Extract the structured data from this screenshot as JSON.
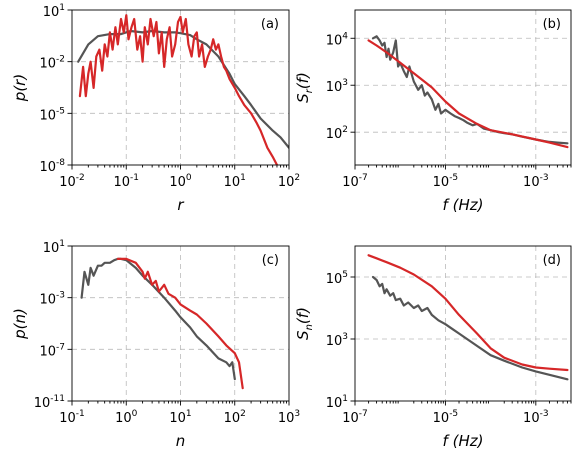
{
  "colors": {
    "gray": "#555555",
    "red": "#d62728"
  },
  "chart_data": [
    {
      "panel": "(a)",
      "type": "line",
      "xscale": "log",
      "yscale": "log",
      "xlim": [
        0.01,
        100
      ],
      "ylim": [
        1e-08,
        10
      ],
      "xlabel": "r",
      "ylabel": "p(r)",
      "xticks": [
        0.01,
        0.1,
        1,
        10,
        100
      ],
      "yticks": [
        1e-08,
        1e-05,
        0.01,
        10
      ],
      "xtick_labels": [
        [
          "10",
          "-2"
        ],
        [
          "10",
          "-1"
        ],
        [
          "10",
          "0"
        ],
        [
          "10",
          "1"
        ],
        [
          "10",
          "2"
        ]
      ],
      "ytick_labels": [
        [
          "10",
          "-8"
        ],
        [
          "10",
          "-5"
        ],
        [
          "10",
          "-2"
        ],
        [
          "10",
          "1"
        ]
      ],
      "grid": true,
      "legend": "none",
      "series": [
        {
          "color": "gray",
          "x": [
            0.013,
            0.02,
            0.03,
            0.05,
            0.08,
            0.12,
            0.2,
            0.3,
            0.5,
            0.8,
            1,
            1.5,
            2,
            3,
            5,
            8,
            10,
            15,
            20,
            30,
            50,
            70,
            100
          ],
          "y": [
            0.01,
            0.1,
            0.3,
            0.4,
            0.4,
            0.6,
            0.5,
            0.6,
            0.5,
            0.5,
            0.45,
            0.35,
            0.2,
            0.1,
            0.02,
            0.002,
            0.0005,
            0.0001,
            3e-05,
            5e-06,
            1e-06,
            4e-07,
            1e-07
          ]
        },
        {
          "color": "red",
          "x": [
            0.014,
            0.016,
            0.018,
            0.02,
            0.022,
            0.025,
            0.028,
            0.032,
            0.036,
            0.04,
            0.045,
            0.05,
            0.056,
            0.063,
            0.07,
            0.08,
            0.09,
            0.1,
            0.11,
            0.125,
            0.14,
            0.16,
            0.18,
            0.2,
            0.22,
            0.25,
            0.28,
            0.32,
            0.36,
            0.4,
            0.45,
            0.5,
            0.56,
            0.63,
            0.7,
            0.8,
            0.9,
            1,
            1.1,
            1.25,
            1.4,
            1.6,
            1.8,
            2,
            2.2,
            2.5,
            2.8,
            3.2,
            3.6,
            4,
            4.5,
            5,
            5.6,
            6.3,
            7,
            8,
            10,
            12,
            15,
            20,
            25,
            30,
            40,
            50,
            60
          ],
          "y": [
            0.0001,
            0.005,
            0.0001,
            0.002,
            0.01,
            0.0003,
            0.02,
            0.05,
            0.003,
            0.1,
            0.02,
            0.5,
            0.05,
            1,
            0.1,
            3,
            0.5,
            5,
            0.2,
            1,
            3,
            0.05,
            0.3,
            0.01,
            1,
            0.1,
            3,
            0.3,
            2,
            0.03,
            0.5,
            0.005,
            0.2,
            1,
            0.02,
            0.1,
            2,
            4,
            0.5,
            3,
            0.1,
            0.02,
            0.3,
            0.5,
            0.02,
            0.1,
            0.005,
            0.02,
            0.05,
            0.2,
            0.05,
            0.1,
            0.02,
            0.005,
            0.003,
            0.001,
            0.0003,
            0.0001,
            3e-05,
            1e-05,
            3e-06,
            1e-06,
            1e-07,
            3e-08,
            1e-08
          ]
        }
      ]
    },
    {
      "panel": "(b)",
      "type": "line",
      "xscale": "log",
      "yscale": "log",
      "xlim": [
        1e-07,
        0.006
      ],
      "ylim": [
        20,
        40000
      ],
      "xlabel": "f (Hz)",
      "ylabel": "S_r(f)",
      "xticks": [
        1e-07,
        1e-05,
        0.001
      ],
      "yticks": [
        100,
        1000,
        10000
      ],
      "xtick_labels": [
        [
          "10",
          "-7"
        ],
        [
          "10",
          "-5"
        ],
        [
          "10",
          "-3"
        ]
      ],
      "ytick_labels": [
        [
          "10",
          "2"
        ],
        [
          "10",
          "3"
        ],
        [
          "10",
          "4"
        ]
      ],
      "grid": true,
      "legend": "none",
      "series": [
        {
          "color": "gray",
          "x": [
            2.5e-07,
            3e-07,
            3.5e-07,
            4e-07,
            4.5e-07,
            5e-07,
            5.5e-07,
            6e-07,
            7e-07,
            8e-07,
            9e-07,
            1e-06,
            1.2e-06,
            1.4e-06,
            1.6e-06,
            2e-06,
            2.5e-06,
            3e-06,
            3.5e-06,
            4e-06,
            5e-06,
            6e-06,
            7e-06,
            8e-06,
            1e-05,
            1.3e-05,
            1.6e-05,
            2e-05,
            2.5e-05,
            3e-05,
            4e-05,
            5e-05,
            7e-05,
            0.0001,
            0.00015,
            0.0002,
            0.0003,
            0.0005,
            0.0007,
            0.001,
            0.0015,
            0.002,
            0.003,
            0.005
          ],
          "y": [
            10000,
            11000,
            9000,
            7000,
            8000,
            4000,
            6000,
            3500,
            5000,
            9000,
            2500,
            3000,
            2000,
            1500,
            2500,
            1200,
            800,
            1000,
            600,
            700,
            500,
            300,
            400,
            250,
            300,
            250,
            220,
            200,
            180,
            160,
            140,
            150,
            120,
            110,
            100,
            95,
            90,
            80,
            75,
            70,
            65,
            62,
            60,
            58
          ]
        },
        {
          "color": "red",
          "x": [
            2e-07,
            3e-07,
            5e-07,
            1e-06,
            2e-06,
            5e-06,
            1e-05,
            2e-05,
            5e-05,
            0.0001,
            0.0003,
            0.001,
            0.002,
            0.005
          ],
          "y": [
            9000,
            7000,
            5000,
            3000,
            1800,
            900,
            450,
            250,
            150,
            110,
            90,
            70,
            60,
            48
          ]
        }
      ]
    },
    {
      "panel": "(c)",
      "type": "line",
      "xscale": "log",
      "yscale": "log",
      "xlim": [
        0.1,
        1000
      ],
      "ylim": [
        1e-11,
        10
      ],
      "xlabel": "n",
      "ylabel": "p(n)",
      "xticks": [
        0.1,
        1,
        10,
        100,
        1000
      ],
      "yticks": [
        1e-11,
        1e-07,
        0.001,
        10
      ],
      "xtick_labels": [
        [
          "10",
          "-1"
        ],
        [
          "10",
          "0"
        ],
        [
          "10",
          "1"
        ],
        [
          "10",
          "2"
        ],
        [
          "10",
          "3"
        ]
      ],
      "ytick_labels": [
        [
          "10",
          "-11"
        ],
        [
          "10",
          "-7"
        ],
        [
          "10",
          "-3"
        ],
        [
          "10",
          "1"
        ]
      ],
      "grid": true,
      "legend": "none",
      "series": [
        {
          "color": "gray",
          "x": [
            0.15,
            0.17,
            0.2,
            0.22,
            0.25,
            0.3,
            0.35,
            0.4,
            0.5,
            0.6,
            0.7,
            0.8,
            1,
            1.5,
            2,
            3,
            5,
            8,
            10,
            15,
            20,
            30,
            50,
            70,
            80,
            90,
            100
          ],
          "y": [
            0.001,
            0.1,
            0.01,
            0.2,
            0.05,
            0.3,
            0.3,
            0.5,
            0.5,
            0.8,
            1,
            1,
            0.8,
            0.2,
            0.05,
            0.01,
            0.001,
            0.0001,
            3e-05,
            5e-06,
            1e-06,
            2e-07,
            2e-08,
            1e-08,
            5e-09,
            1e-08,
            5e-10
          ]
        },
        {
          "color": "red",
          "x": [
            0.7,
            1,
            1.5,
            2,
            2.2,
            2.5,
            3,
            3.5,
            4,
            5,
            6,
            8,
            10,
            15,
            20,
            30,
            50,
            70,
            100,
            120,
            140
          ],
          "y": [
            1,
            1,
            0.5,
            0.1,
            0.03,
            0.1,
            0.01,
            0.02,
            0.003,
            0.01,
            0.002,
            0.001,
            0.0003,
            0.0001,
            5e-05,
            1e-05,
            1e-06,
            2e-07,
            5e-08,
            1e-08,
            1e-10
          ]
        }
      ]
    },
    {
      "panel": "(d)",
      "type": "line",
      "xscale": "log",
      "yscale": "log",
      "xlim": [
        1e-07,
        0.006
      ],
      "ylim": [
        10,
        1000000
      ],
      "xlabel": "f (Hz)",
      "ylabel": "S_n(f)",
      "xticks": [
        1e-07,
        1e-05,
        0.001
      ],
      "yticks": [
        10,
        1000,
        100000
      ],
      "xtick_labels": [
        [
          "10",
          "-7"
        ],
        [
          "10",
          "-5"
        ],
        [
          "10",
          "-3"
        ]
      ],
      "ytick_labels": [
        [
          "10",
          "1"
        ],
        [
          "10",
          "3"
        ],
        [
          "10",
          "5"
        ]
      ],
      "grid": true,
      "legend": "none",
      "series": [
        {
          "color": "gray",
          "x": [
            2.5e-07,
            3e-07,
            3.5e-07,
            4e-07,
            4.5e-07,
            5e-07,
            6e-07,
            7e-07,
            8e-07,
            1e-06,
            1.2e-06,
            1.5e-06,
            2e-06,
            2.5e-06,
            3e-06,
            4e-06,
            5e-06,
            7e-06,
            1e-05,
            1.5e-05,
            2e-05,
            3e-05,
            5e-05,
            0.0001,
            0.0002,
            0.0005,
            0.001,
            0.002,
            0.005
          ],
          "y": [
            100000,
            80000,
            50000,
            60000,
            30000,
            40000,
            25000,
            30000,
            18000,
            20000,
            12000,
            15000,
            10000,
            12000,
            8000,
            10000,
            6000,
            4000,
            3000,
            2000,
            1500,
            1000,
            600,
            300,
            200,
            120,
            90,
            70,
            50
          ]
        },
        {
          "color": "red",
          "x": [
            2e-07,
            3e-07,
            5e-07,
            1e-06,
            2e-06,
            5e-06,
            1e-05,
            2e-05,
            5e-05,
            0.0001,
            0.0002,
            0.0005,
            0.001,
            0.002,
            0.005
          ],
          "y": [
            500000,
            400000,
            300000,
            200000,
            120000,
            50000,
            20000,
            6000,
            1500,
            500,
            250,
            150,
            120,
            110,
            100
          ]
        }
      ]
    }
  ]
}
